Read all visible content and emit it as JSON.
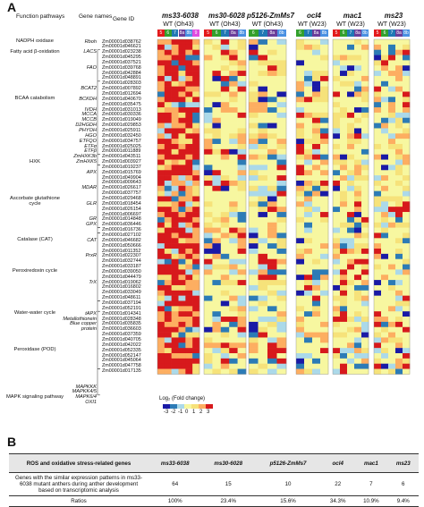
{
  "panel_a": {
    "label": "A",
    "headers": {
      "pathways": "Function pathways",
      "genes": "Gene names",
      "ids": "Gene ID"
    },
    "datasets": [
      {
        "title": "ms33-6038",
        "sub": "WT (Oh43)",
        "chips": [
          "5",
          "6",
          "7",
          "8a",
          "8b",
          "9"
        ]
      },
      {
        "title": "ms30-6028",
        "sub": "WT (Oh43)",
        "chips": [
          "5",
          "6",
          "7",
          "8a",
          "8b"
        ]
      },
      {
        "title": "p5126-ZmMs7",
        "sub": "WT (Oh43)",
        "chips": [
          "6",
          "7",
          "8a",
          "8b"
        ]
      },
      {
        "title": "ocl4",
        "sub": "WT (W23)",
        "chips": [
          "6",
          "7",
          "8a",
          "8b"
        ]
      },
      {
        "title": "mac1",
        "sub": "WT (W23)",
        "chips": [
          "5",
          "6",
          "7",
          "8a",
          "8b"
        ]
      },
      {
        "title": "ms23",
        "sub": "WT (W23)",
        "chips": [
          "5",
          "6",
          "7",
          "8a",
          "8b"
        ]
      }
    ],
    "pathways": [
      {
        "name": "NADPH oxidase",
        "row": 0
      },
      {
        "name": "Fatty acid β-oxidation",
        "row": 2
      },
      {
        "name": "BCAA catabolism",
        "row": 11
      },
      {
        "name": "HXK",
        "row": 23
      },
      {
        "name": "Ascorbate glutathione cycle",
        "row": 30
      },
      {
        "name": "Catalase (CAT)",
        "row": 38
      },
      {
        "name": "Peroxiredoxin cycle",
        "row": 44
      },
      {
        "name": "Water-water cycle",
        "row": 52
      },
      {
        "name": "Peroxidase (POD)",
        "row": 59
      },
      {
        "name": "MAPK signaling pathway",
        "row": 68
      }
    ],
    "gene_names": [
      {
        "name": "Rboh",
        "row": 0
      },
      {
        "name": "LACS",
        "row": 2
      },
      {
        "name": "FAO",
        "row": 5
      },
      {
        "name": "BCAT2",
        "row": 9
      },
      {
        "name": "BCKDH",
        "row": 11
      },
      {
        "name": "IVDH",
        "row": 13
      },
      {
        "name": "MCCA",
        "row": 14
      },
      {
        "name": "MCCB",
        "row": 15
      },
      {
        "name": "D2HGDH",
        "row": 16
      },
      {
        "name": "PHYOH",
        "row": 17
      },
      {
        "name": "HGO",
        "row": 18
      },
      {
        "name": "ETFQO",
        "row": 19
      },
      {
        "name": "ETFα",
        "row": 20
      },
      {
        "name": "ETFβ",
        "row": 21
      },
      {
        "name": "ZmHXK3b",
        "row": 22
      },
      {
        "name": "ZmHXK5",
        "row": 23
      },
      {
        "name": "APX",
        "row": 25
      },
      {
        "name": "MDAR",
        "row": 28
      },
      {
        "name": "GLR",
        "row": 31
      },
      {
        "name": "GR",
        "row": 34
      },
      {
        "name": "GPX",
        "row": 35
      },
      {
        "name": "CAT",
        "row": 38
      },
      {
        "name": "PrxR",
        "row": 41
      },
      {
        "name": "TrX",
        "row": 46
      },
      {
        "name": "tAPX",
        "row": 52
      },
      {
        "name": "Metallothionein",
        "row": 53
      },
      {
        "name": "Blue copper",
        "row": 54
      },
      {
        "name": "protein",
        "row": 55
      },
      {
        "name": "MAPKKK",
        "row": 66
      },
      {
        "name": "MAPKK4/5",
        "row": 67
      },
      {
        "name": "MAPK6/4",
        "row": 68
      },
      {
        "name": "OXI1",
        "row": 69
      }
    ],
    "gene_ids": [
      "Zm00001d038762",
      "Zm00001d046621",
      "Zm00001d023238",
      "Zm00001d045295",
      "Zm00001d037521",
      "Zm00001d039768",
      "Zm00001d042884",
      "Zm00001d048891",
      "Zm00001d028303",
      "Zm00001d007892",
      "Zm00001d012694",
      "Zm00001d040670",
      "Zm00001d035475",
      "Zm00001d031013",
      "Zm00001d030336",
      "Zm00001d019049",
      "Zm00001d029853",
      "Zm00001d025911",
      "Zm00001d032450",
      "Zm00001d034757",
      "Zm00001d025025",
      "Zm00001d011889",
      "Zm00001d043511",
      "Zm00001d003927",
      "Zm00001d019237",
      "Zm00001d015769",
      "Zm00001d049904",
      "Zm00001d009643",
      "Zm00001d026617",
      "Zm00001d037757",
      "Zm00001d029468",
      "Zm00001d018454",
      "Zm00001d026154",
      "Zm00001d006697",
      "Zm00001d014848",
      "Zm00001d036446",
      "Zm00001d016736",
      "Zm00001d027102",
      "Zm00001d046682",
      "Zm00001d050666",
      "Zm00001d011352",
      "Zm00001d022307",
      "Zm00001d032744",
      "Zm00001d033187",
      "Zm00001d039050",
      "Zm00001d044479",
      "Zm00001d019062",
      "Zm00001d016802",
      "Zm00001d033049",
      "Zm00001d048611",
      "Zm00001d037194",
      "Zm00001d052191",
      "Zm00001d014341",
      "Zm00001d028348",
      "Zm00001d035835",
      "Zm00001d036603",
      "Zm00001d037359",
      "Zm00001d040705",
      "Zm00001d042022",
      "Zm00001d052335",
      "Zm00001d052147",
      "Zm00001d045064",
      "Zm00001d047758",
      "Zm00001d017135"
    ],
    "legend": {
      "title": "Log₂ (Fold change)",
      "ticks": [
        "-3",
        "-2",
        "-1",
        "0",
        "1",
        "2",
        "3"
      ]
    }
  },
  "panel_b": {
    "label": "B",
    "table": {
      "headers": [
        "ROS and oxidative stress-related genes",
        "ms33-6038",
        "ms30-6028",
        "p5126-ZmMs7",
        "ocl4",
        "mac1",
        "ms23"
      ],
      "rows": [
        {
          "label": "Genes with the similar expression patterns in ms33-6038 mutant anthers during anther development based on transcriptomic analysis",
          "values": [
            "64",
            "15",
            "10",
            "22",
            "7",
            "6"
          ]
        },
        {
          "label": "Ratios",
          "values": [
            "100%",
            "23.4%",
            "15.6%",
            "34.3%",
            "10.9%",
            "9.4%"
          ]
        }
      ]
    }
  },
  "colors": {
    "strong_up": "#d7191c",
    "up": "#fdae61",
    "mild_up": "#f6e27a",
    "neutral": "#f7f7a0",
    "mild_down": "#abd9e9",
    "down": "#2c7bb6",
    "strong_down": "#1a1aa6",
    "chip_colors": [
      "#e31a1c",
      "#33a02c",
      "#1f78b4",
      "#6a3d9a",
      "#4a90e2",
      "#e04be0"
    ]
  }
}
